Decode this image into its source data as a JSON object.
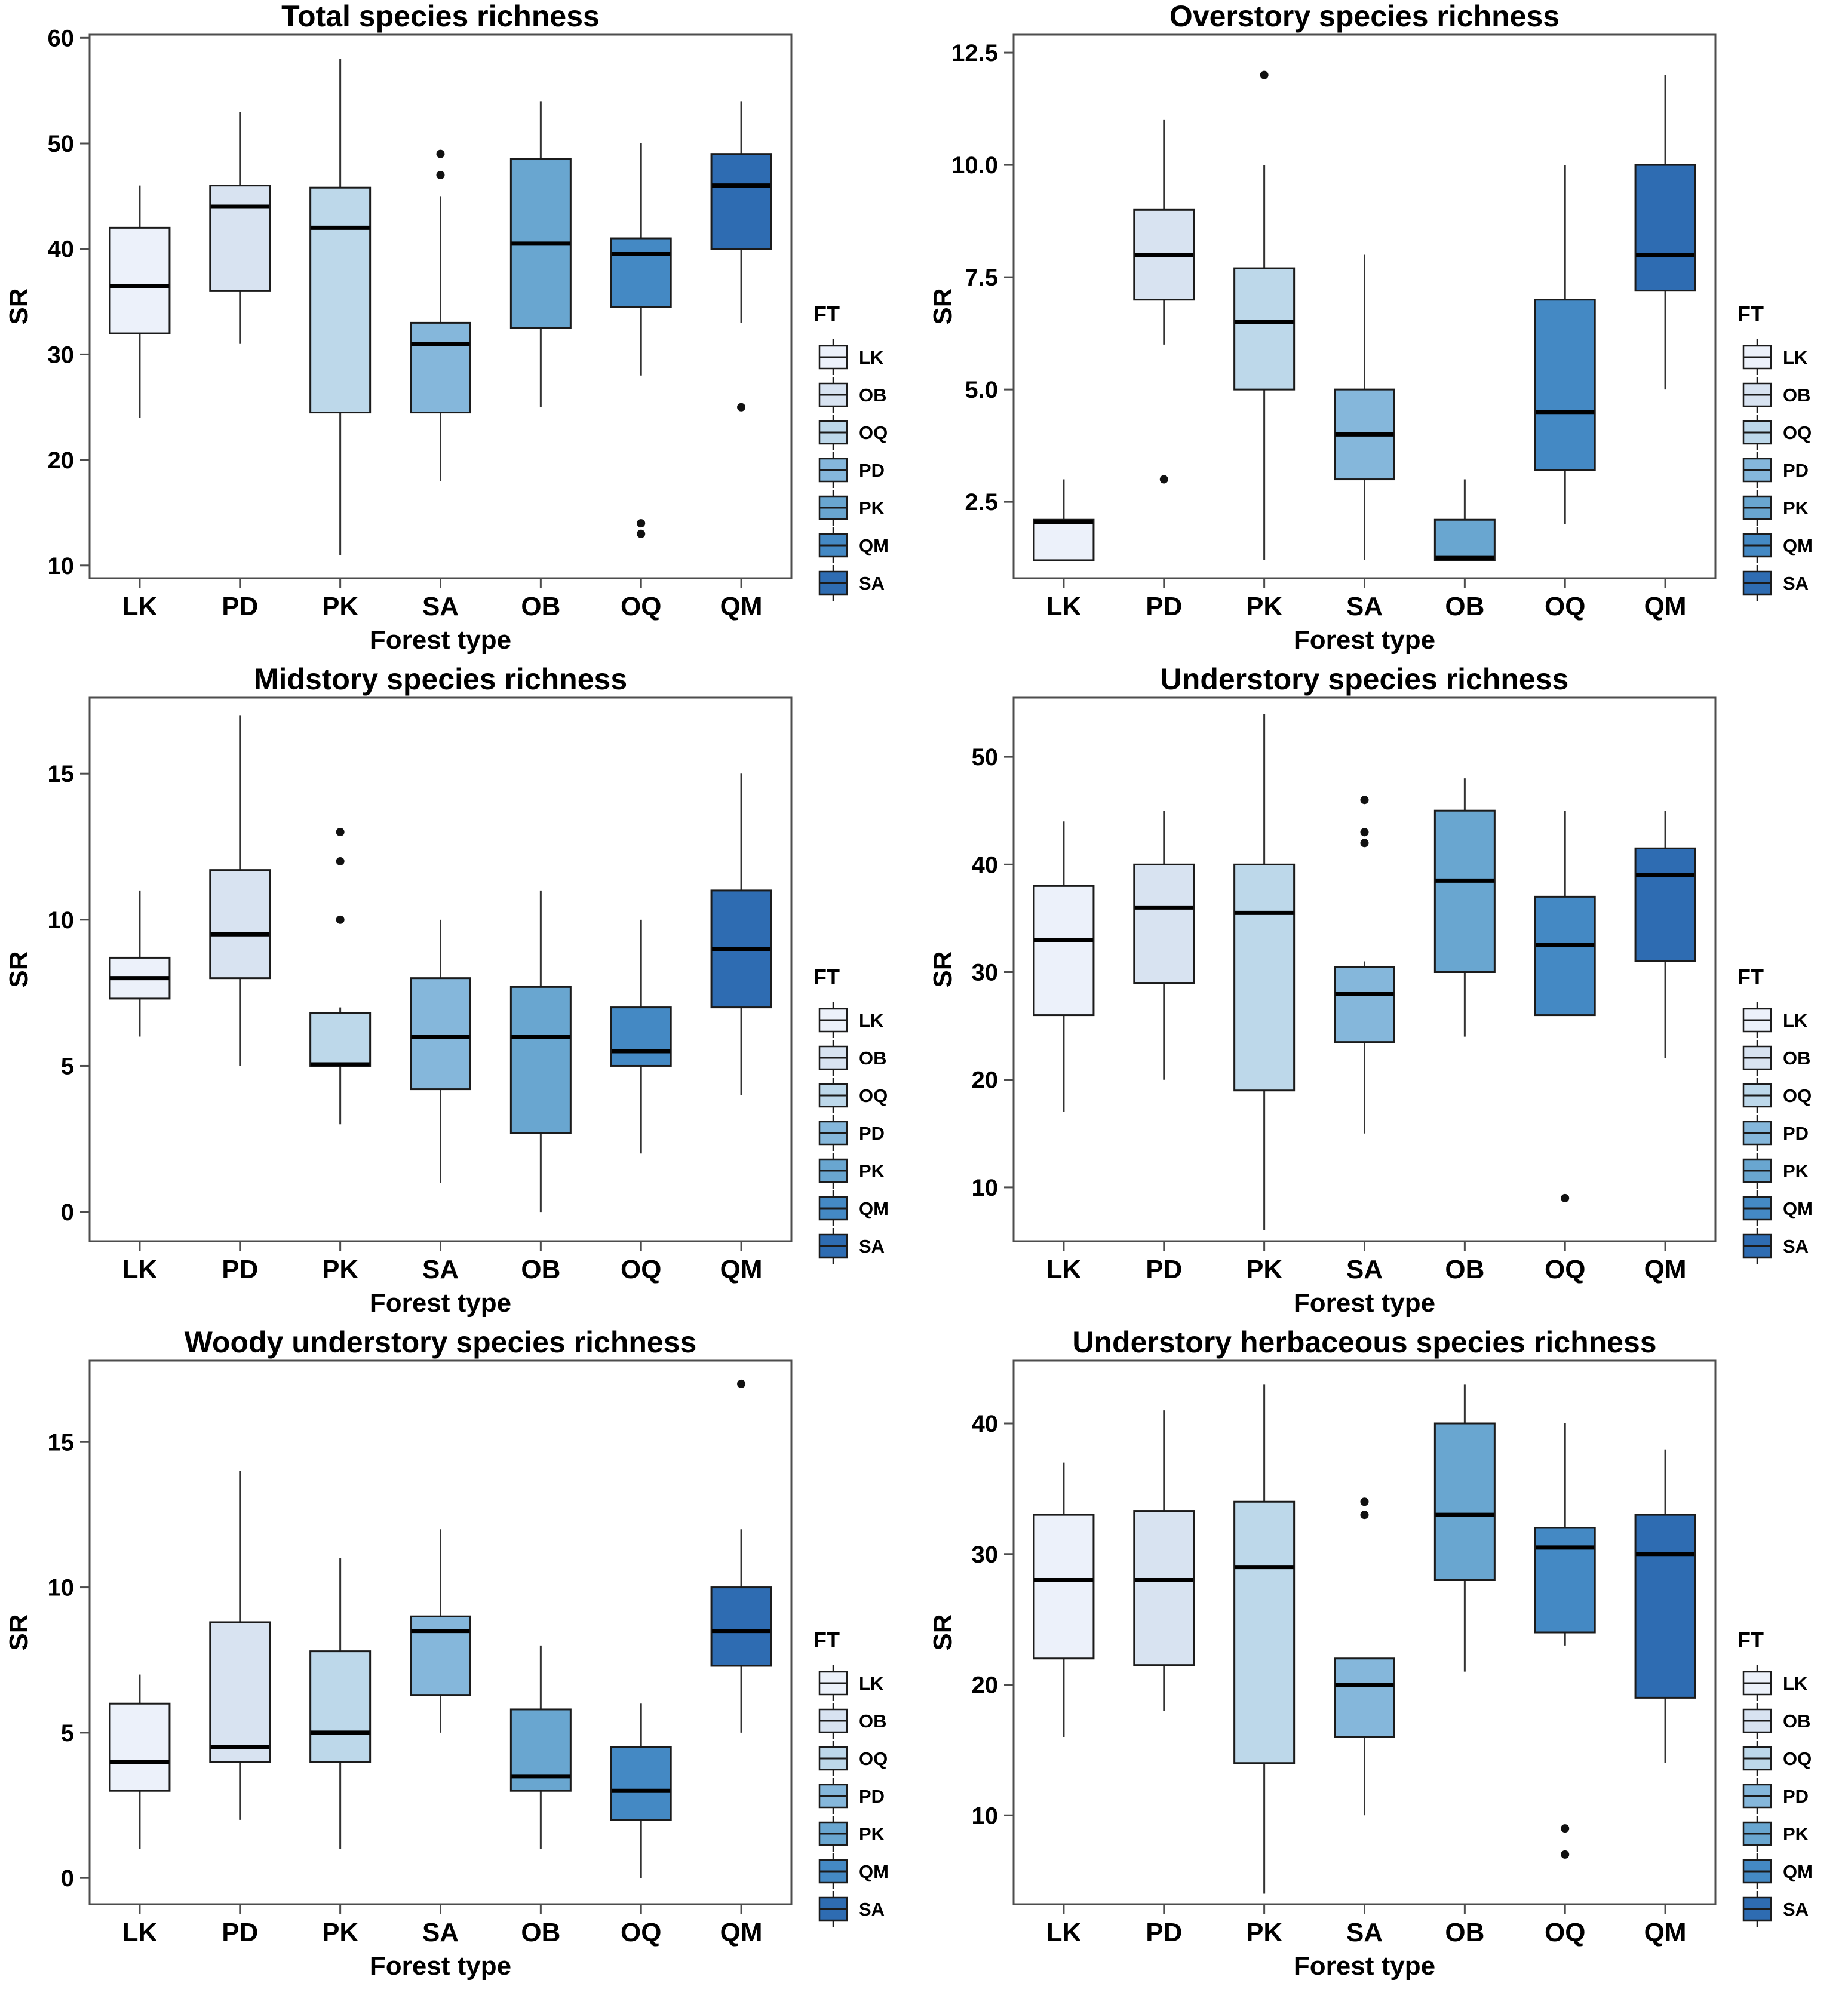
{
  "figure": {
    "background": "#ffffff"
  },
  "palette": {
    "box_fill_by_position": [
      "#ecf1fa",
      "#d8e3f1",
      "#bdd8ea",
      "#85b7db",
      "#69a6d0",
      "#4489c4",
      "#2e6cb2"
    ],
    "box_stroke": "#1b1b1b",
    "median": "#000000",
    "whisker": "#333333",
    "outlier": "#111111",
    "panel_border": "#4d4d4d"
  },
  "legend": {
    "title": "FT",
    "entries": [
      {
        "label": "LK",
        "color": "#ecf1fa"
      },
      {
        "label": "OB",
        "color": "#d8e3f1"
      },
      {
        "label": "OQ",
        "color": "#bdd8ea"
      },
      {
        "label": "PD",
        "color": "#85b7db"
      },
      {
        "label": "PK",
        "color": "#69a6d0"
      },
      {
        "label": "QM",
        "color": "#4489c4"
      },
      {
        "label": "SA",
        "color": "#2e6cb2"
      }
    ]
  },
  "chart_data": [
    {
      "type": "boxplot",
      "title": "Total species richness",
      "xlabel": "Forest type",
      "ylabel": "SR",
      "categories": [
        "LK",
        "PD",
        "PK",
        "SA",
        "OB",
        "OQ",
        "QM"
      ],
      "ylim": [
        8.8,
        60.3
      ],
      "yticks": [
        10,
        20,
        30,
        40,
        50,
        60
      ],
      "ytick_labels": [
        "10",
        "20",
        "30",
        "40",
        "50",
        "60"
      ],
      "grid": false,
      "legend_position": "right",
      "boxes": [
        {
          "category": "LK",
          "low": 24,
          "q1": 32,
          "median": 36.5,
          "q3": 42,
          "high": 46,
          "outliers": []
        },
        {
          "category": "PD",
          "low": 31,
          "q1": 36,
          "median": 44,
          "q3": 46,
          "high": 53,
          "outliers": []
        },
        {
          "category": "PK",
          "low": 11,
          "q1": 24.5,
          "median": 42,
          "q3": 45.8,
          "high": 58,
          "outliers": []
        },
        {
          "category": "SA",
          "low": 18,
          "q1": 24.5,
          "median": 31,
          "q3": 33,
          "high": 45,
          "outliers": [
            47,
            49
          ]
        },
        {
          "category": "OB",
          "low": 25,
          "q1": 32.5,
          "median": 40.5,
          "q3": 48.5,
          "high": 54,
          "outliers": []
        },
        {
          "category": "OQ",
          "low": 28,
          "q1": 34.5,
          "median": 39.5,
          "q3": 41,
          "high": 50,
          "outliers": [
            13,
            14
          ]
        },
        {
          "category": "QM",
          "low": 33,
          "q1": 40,
          "median": 46,
          "q3": 49,
          "high": 54,
          "outliers": [
            25
          ]
        }
      ]
    },
    {
      "type": "boxplot",
      "title": "Overstory species richness",
      "xlabel": "Forest type",
      "ylabel": "SR",
      "categories": [
        "LK",
        "PD",
        "PK",
        "SA",
        "OB",
        "OQ",
        "QM"
      ],
      "ylim": [
        0.8,
        12.9
      ],
      "yticks": [
        2.5,
        5.0,
        7.5,
        10.0,
        12.5
      ],
      "ytick_labels": [
        "2.5",
        "5.0",
        "7.5",
        "10.0",
        "12.5"
      ],
      "grid": false,
      "legend_position": "right",
      "boxes": [
        {
          "category": "LK",
          "low": 1.2,
          "q1": 1.2,
          "median": 2.05,
          "q3": 2.1,
          "high": 3,
          "outliers": []
        },
        {
          "category": "PD",
          "low": 6,
          "q1": 7,
          "median": 8,
          "q3": 9,
          "high": 11,
          "outliers": [
            3
          ]
        },
        {
          "category": "PK",
          "low": 1.2,
          "q1": 5,
          "median": 6.5,
          "q3": 7.7,
          "high": 10,
          "outliers": [
            12
          ]
        },
        {
          "category": "SA",
          "low": 1.2,
          "q1": 3,
          "median": 4,
          "q3": 5,
          "high": 8,
          "outliers": []
        },
        {
          "category": "OB",
          "low": 1.2,
          "q1": 1.2,
          "median": 1.25,
          "q3": 2.1,
          "high": 3,
          "outliers": []
        },
        {
          "category": "OQ",
          "low": 2,
          "q1": 3.2,
          "median": 4.5,
          "q3": 7,
          "high": 10,
          "outliers": []
        },
        {
          "category": "QM",
          "low": 5,
          "q1": 7.2,
          "median": 8,
          "q3": 10,
          "high": 12,
          "outliers": []
        }
      ]
    },
    {
      "type": "boxplot",
      "title": "Midstory species richness",
      "xlabel": "Forest type",
      "ylabel": "SR",
      "categories": [
        "LK",
        "PD",
        "PK",
        "SA",
        "OB",
        "OQ",
        "QM"
      ],
      "ylim": [
        -1,
        17.6
      ],
      "yticks": [
        0,
        5,
        10,
        15
      ],
      "ytick_labels": [
        "0",
        "5",
        "10",
        "15"
      ],
      "grid": false,
      "legend_position": "right",
      "boxes": [
        {
          "category": "LK",
          "low": 6,
          "q1": 7.3,
          "median": 8,
          "q3": 8.7,
          "high": 11,
          "outliers": []
        },
        {
          "category": "PD",
          "low": 5,
          "q1": 8,
          "median": 9.5,
          "q3": 11.7,
          "high": 17,
          "outliers": []
        },
        {
          "category": "PK",
          "low": 3,
          "q1": 5,
          "median": 5.05,
          "q3": 6.8,
          "high": 7,
          "outliers": [
            10,
            12,
            13
          ]
        },
        {
          "category": "SA",
          "low": 1,
          "q1": 4.2,
          "median": 6,
          "q3": 8,
          "high": 10,
          "outliers": []
        },
        {
          "category": "OB",
          "low": 0,
          "q1": 2.7,
          "median": 6,
          "q3": 7.7,
          "high": 11,
          "outliers": []
        },
        {
          "category": "OQ",
          "low": 2,
          "q1": 5,
          "median": 5.5,
          "q3": 7,
          "high": 10,
          "outliers": []
        },
        {
          "category": "QM",
          "low": 4,
          "q1": 7,
          "median": 9,
          "q3": 11,
          "high": 15,
          "outliers": []
        }
      ]
    },
    {
      "type": "boxplot",
      "title": "Understory species richness",
      "xlabel": "Forest type",
      "ylabel": "SR",
      "categories": [
        "LK",
        "PD",
        "PK",
        "SA",
        "OB",
        "OQ",
        "QM"
      ],
      "ylim": [
        5,
        55.5
      ],
      "yticks": [
        10,
        20,
        30,
        40,
        50
      ],
      "ytick_labels": [
        "10",
        "20",
        "30",
        "40",
        "50"
      ],
      "grid": false,
      "legend_position": "right",
      "boxes": [
        {
          "category": "LK",
          "low": 17,
          "q1": 26,
          "median": 33,
          "q3": 38,
          "high": 44,
          "outliers": []
        },
        {
          "category": "PD",
          "low": 20,
          "q1": 29,
          "median": 36,
          "q3": 40,
          "high": 45,
          "outliers": []
        },
        {
          "category": "PK",
          "low": 6,
          "q1": 19,
          "median": 35.5,
          "q3": 40,
          "high": 54,
          "outliers": []
        },
        {
          "category": "SA",
          "low": 15,
          "q1": 23.5,
          "median": 28,
          "q3": 30.5,
          "high": 31,
          "outliers": [
            42,
            43,
            46
          ]
        },
        {
          "category": "OB",
          "low": 24,
          "q1": 30,
          "median": 38.5,
          "q3": 45,
          "high": 48,
          "outliers": []
        },
        {
          "category": "OQ",
          "low": 26,
          "q1": 26,
          "median": 32.5,
          "q3": 37,
          "high": 45,
          "outliers": [
            9
          ]
        },
        {
          "category": "QM",
          "low": 22,
          "q1": 31,
          "median": 39,
          "q3": 41.5,
          "high": 45,
          "outliers": []
        }
      ]
    },
    {
      "type": "boxplot",
      "title": "Woody understory species richness",
      "xlabel": "Forest type",
      "ylabel": "SR",
      "categories": [
        "LK",
        "PD",
        "PK",
        "SA",
        "OB",
        "OQ",
        "QM"
      ],
      "ylim": [
        -0.9,
        17.8
      ],
      "yticks": [
        0,
        5,
        10,
        15
      ],
      "ytick_labels": [
        "0",
        "5",
        "10",
        "15"
      ],
      "grid": false,
      "legend_position": "right",
      "boxes": [
        {
          "category": "LK",
          "low": 1,
          "q1": 3,
          "median": 4,
          "q3": 6,
          "high": 7,
          "outliers": []
        },
        {
          "category": "PD",
          "low": 2,
          "q1": 4,
          "median": 4.5,
          "q3": 8.8,
          "high": 14,
          "outliers": []
        },
        {
          "category": "PK",
          "low": 1,
          "q1": 4,
          "median": 5,
          "q3": 7.8,
          "high": 11,
          "outliers": []
        },
        {
          "category": "SA",
          "low": 5,
          "q1": 6.3,
          "median": 8.5,
          "q3": 9,
          "high": 12,
          "outliers": []
        },
        {
          "category": "OB",
          "low": 1,
          "q1": 3,
          "median": 3.5,
          "q3": 5.8,
          "high": 8,
          "outliers": []
        },
        {
          "category": "OQ",
          "low": 0,
          "q1": 2,
          "median": 3,
          "q3": 4.5,
          "high": 6,
          "outliers": []
        },
        {
          "category": "QM",
          "low": 5,
          "q1": 7.3,
          "median": 8.5,
          "q3": 10,
          "high": 12,
          "outliers": [
            17
          ]
        }
      ]
    },
    {
      "type": "boxplot",
      "title": "Understory herbaceous species richness",
      "xlabel": "Forest type",
      "ylabel": "SR",
      "categories": [
        "LK",
        "PD",
        "PK",
        "SA",
        "OB",
        "OQ",
        "QM"
      ],
      "ylim": [
        3.2,
        44.8
      ],
      "yticks": [
        10,
        20,
        30,
        40
      ],
      "ytick_labels": [
        "10",
        "20",
        "30",
        "40"
      ],
      "grid": false,
      "legend_position": "right",
      "boxes": [
        {
          "category": "LK",
          "low": 16,
          "q1": 22,
          "median": 28,
          "q3": 33,
          "high": 37,
          "outliers": []
        },
        {
          "category": "PD",
          "low": 18,
          "q1": 21.5,
          "median": 28,
          "q3": 33.3,
          "high": 41,
          "outliers": []
        },
        {
          "category": "PK",
          "low": 4,
          "q1": 14,
          "median": 29,
          "q3": 34,
          "high": 43,
          "outliers": []
        },
        {
          "category": "SA",
          "low": 10,
          "q1": 16,
          "median": 20,
          "q3": 22,
          "high": 22,
          "outliers": [
            33,
            34
          ]
        },
        {
          "category": "OB",
          "low": 21,
          "q1": 28,
          "median": 33,
          "q3": 40,
          "high": 43,
          "outliers": []
        },
        {
          "category": "OQ",
          "low": 23,
          "q1": 24,
          "median": 30.5,
          "q3": 32,
          "high": 40,
          "outliers": [
            7,
            9
          ]
        },
        {
          "category": "QM",
          "low": 14,
          "q1": 19,
          "median": 30,
          "q3": 33,
          "high": 38,
          "outliers": []
        }
      ]
    }
  ]
}
